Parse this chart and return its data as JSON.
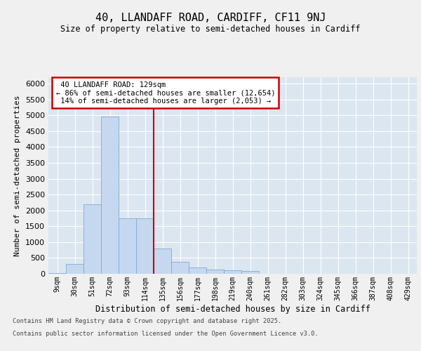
{
  "title": "40, LLANDAFF ROAD, CARDIFF, CF11 9NJ",
  "subtitle": "Size of property relative to semi-detached houses in Cardiff",
  "xlabel": "Distribution of semi-detached houses by size in Cardiff",
  "ylabel": "Number of semi-detached properties",
  "categories": [
    "9sqm",
    "30sqm",
    "51sqm",
    "72sqm",
    "93sqm",
    "114sqm",
    "135sqm",
    "156sqm",
    "177sqm",
    "198sqm",
    "219sqm",
    "240sqm",
    "261sqm",
    "282sqm",
    "303sqm",
    "324sqm",
    "345sqm",
    "366sqm",
    "387sqm",
    "408sqm",
    "429sqm"
  ],
  "values": [
    30,
    320,
    2200,
    4950,
    1750,
    1750,
    800,
    380,
    200,
    130,
    100,
    90,
    0,
    0,
    0,
    0,
    0,
    0,
    0,
    0,
    0
  ],
  "bar_color": "#c5d8f0",
  "bar_edge_color": "#7aadd4",
  "background_color": "#dce6f0",
  "grid_color": "#ffffff",
  "property_label": "40 LLANDAFF ROAD: 129sqm",
  "pct_smaller": 86,
  "num_smaller": 12654,
  "pct_larger": 14,
  "num_larger": 2053,
  "vline_x": 5.5,
  "ylim": [
    0,
    6200
  ],
  "yticks": [
    0,
    500,
    1000,
    1500,
    2000,
    2500,
    3000,
    3500,
    4000,
    4500,
    5000,
    5500,
    6000
  ],
  "annotation_box_color": "#cc0000",
  "fig_bg": "#f0f0f0",
  "footer_line1": "Contains HM Land Registry data © Crown copyright and database right 2025.",
  "footer_line2": "Contains public sector information licensed under the Open Government Licence v3.0."
}
